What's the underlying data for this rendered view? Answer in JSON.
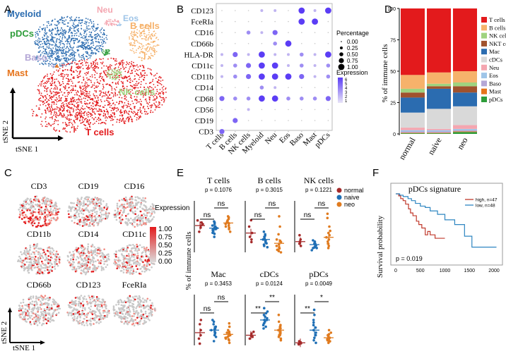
{
  "panel_labels": {
    "A": "A",
    "B": "B",
    "C": "C",
    "D": "D",
    "E": "E",
    "F": "F"
  },
  "colors": {
    "tcells": "#e31a1c",
    "bcells": "#f6b26b",
    "nkcells": "#9fd37f",
    "nktcells": "#a0522d",
    "myeloid": "#2b6cb0",
    "neu": "#f4a6b0",
    "eos": "#9fc5e8",
    "baso": "#b4a7d6",
    "mast": "#e6741c",
    "pdcs": "#2e9d3a",
    "cdcs": "#d9d9d9",
    "normal": "#a52a2a",
    "naive": "#1f6fb5",
    "neo": "#e07b1f"
  },
  "panel_a": {
    "axis_x": "tSNE 1",
    "axis_y": "tSNE 2",
    "clusters": {
      "myeloid": "Myeloid",
      "neu": "Neu",
      "eos": "Eos",
      "bcells": "B cells",
      "pdcs": "pDCs",
      "baso": "Baso",
      "mast": "Mast",
      "nkcells": "NK cells",
      "tcells": "T cells"
    }
  },
  "chart_data": [
    {
      "id": "B",
      "type": "dot",
      "rows": [
        "CD123",
        "FceRIa",
        "CD16",
        "CD66b",
        "HLA-DR",
        "CD11c",
        "CD11b",
        "CD14",
        "CD68",
        "CD56",
        "CD19",
        "CD3"
      ],
      "columns": [
        "T cells",
        "B cells",
        "NK cells",
        "Myeloid",
        "Neu",
        "Eos",
        "Baso",
        "Mast",
        "pDCs"
      ],
      "size_values": [
        [
          0,
          0,
          0,
          0.25,
          0.25,
          0,
          1,
          0.25,
          1
        ],
        [
          0,
          0,
          0,
          0,
          0,
          0,
          1,
          1,
          0
        ],
        [
          0,
          0,
          0.5,
          0.25,
          0.75,
          0,
          0,
          0,
          0
        ],
        [
          0,
          0,
          0,
          0,
          0.5,
          1,
          0,
          0,
          0
        ],
        [
          0.25,
          0.75,
          0.25,
          1,
          0.25,
          0.25,
          0.5,
          0.25,
          1
        ],
        [
          0.25,
          0.5,
          0.75,
          1,
          1,
          0.25,
          0.5,
          0.25,
          0.5
        ],
        [
          0.25,
          0.5,
          0.75,
          1,
          1,
          1,
          0.75,
          0.25,
          0.5
        ],
        [
          0,
          0,
          0,
          0.5,
          0.25,
          0,
          0,
          0,
          0
        ],
        [
          0.75,
          0.5,
          0.5,
          1,
          1,
          0.5,
          0.5,
          0.5,
          0.75
        ],
        [
          0,
          0,
          0.25,
          0,
          0,
          0,
          0,
          0,
          0
        ],
        [
          0,
          0.75,
          0,
          0,
          0,
          0,
          0,
          0,
          0
        ],
        [
          0.75,
          0,
          0,
          0,
          0,
          0,
          0,
          0,
          0
        ]
      ],
      "legend_size_title": "Percentage",
      "legend_sizes": [
        "0.00",
        "0.25",
        "0.50",
        "0.75",
        "1.00"
      ],
      "legend_color_title": "Expression",
      "legend_color_ticks": [
        "6",
        "5",
        "4",
        "3",
        "2",
        "1"
      ]
    },
    {
      "id": "D",
      "type": "stacked_bar",
      "categories": [
        "normal",
        "naive",
        "neo"
      ],
      "ylabel": "% of immune cells",
      "ylim": [
        0,
        100
      ],
      "yticks": [
        "0",
        "25",
        "50",
        "75",
        "100"
      ],
      "series": [
        {
          "name": "T cells",
          "color_key": "tcells",
          "values": [
            53,
            51,
            50
          ]
        },
        {
          "name": "B cells",
          "color_key": "bcells",
          "values": [
            11,
            9,
            9
          ]
        },
        {
          "name": "NK cells",
          "color_key": "nkcells",
          "values": [
            3,
            2,
            3
          ]
        },
        {
          "name": "NKT cells",
          "color_key": "nktcells",
          "values": [
            4,
            2,
            5
          ]
        },
        {
          "name": "Mac",
          "color_key": "myeloid",
          "values": [
            12,
            16,
            11
          ]
        },
        {
          "name": "cDCs",
          "color_key": "cdcs",
          "values": [
            12,
            16,
            15
          ]
        },
        {
          "name": "Neu",
          "color_key": "neu",
          "values": [
            2,
            1,
            3
          ]
        },
        {
          "name": "Eos",
          "color_key": "eos",
          "values": [
            1,
            1,
            1
          ]
        },
        {
          "name": "Baso",
          "color_key": "baso",
          "values": [
            1,
            1,
            1
          ]
        },
        {
          "name": "Mast",
          "color_key": "mast",
          "values": [
            0.5,
            0.5,
            0.5
          ]
        },
        {
          "name": "pDCs",
          "color_key": "pdcs",
          "values": [
            0.5,
            0.5,
            1.5
          ]
        }
      ]
    },
    {
      "id": "E",
      "type": "dot_strip",
      "ylabel": "% of immune cells",
      "groups": [
        "normal",
        "naive",
        "neo"
      ],
      "legend": [
        "normal",
        "naive",
        "neo"
      ],
      "subplots": [
        {
          "title": "T cells",
          "p": "p = 0.1076",
          "ylim": [
            0,
            100
          ],
          "means": [
            52,
            47,
            57
          ],
          "points": [
            [
              40,
              48,
              55,
              58,
              62,
              52
            ],
            [
              30,
              38,
              42,
              45,
              48,
              52,
              55,
              58,
              50,
              44,
              36,
              60,
              47
            ],
            [
              40,
              45,
              50,
              55,
              58,
              62,
              65,
              70,
              52,
              48,
              60,
              57,
              56,
              68
            ]
          ],
          "sig": [
            {
              "a": 0,
              "b": 1,
              "label": "ns"
            },
            {
              "a": 1,
              "b": 2,
              "label": "ns"
            }
          ]
        },
        {
          "title": "B cells",
          "p": "p = 0.3015",
          "ylim": [
            0,
            40
          ],
          "means": [
            15,
            10,
            7
          ],
          "points": [
            [
              8,
              12,
              15,
              20,
              25,
              10
            ],
            [
              4,
              6,
              8,
              10,
              12,
              14,
              16,
              9,
              7,
              11,
              13,
              5,
              10
            ],
            [
              0,
              1,
              2,
              3,
              5,
              8,
              10,
              14,
              20,
              28,
              4,
              2,
              6,
              9
            ]
          ],
          "sig": [
            {
              "a": 0,
              "b": 1,
              "label": "ns"
            },
            {
              "a": 1,
              "b": 2,
              "label": "ns"
            }
          ]
        },
        {
          "title": "NK cells",
          "p": "p = 0.1221",
          "ylim": [
            0,
            12
          ],
          "means": [
            2.5,
            1.8,
            3.5
          ],
          "points": [
            [
              1.5,
              2,
              2.5,
              3,
              4,
              2.2
            ],
            [
              0.5,
              1,
              1.5,
              2,
              2.5,
              1.2,
              1.8,
              2.2,
              1.6,
              2.8,
              1.4,
              2,
              1
            ],
            [
              1,
              2,
              3,
              4,
              5,
              6,
              8,
              9,
              2.5,
              3.5,
              1.5,
              4.5,
              2,
              3
            ]
          ],
          "sig": [
            {
              "a": 0,
              "b": 1,
              "label": "ns"
            },
            {
              "a": 1,
              "b": 2,
              "label": "ns"
            }
          ]
        },
        {
          "title": "Mac",
          "p": "p = 0.3453",
          "ylim": [
            0,
            60
          ],
          "means": [
            15,
            18,
            13
          ],
          "points": [
            [
              2,
              8,
              12,
              18,
              25,
              30
            ],
            [
              5,
              10,
              12,
              15,
              18,
              20,
              22,
              25,
              28,
              30,
              14,
              16,
              19
            ],
            [
              3,
              6,
              8,
              10,
              12,
              15,
              18,
              22,
              26,
              9,
              11,
              14,
              7,
              16
            ]
          ],
          "sig": [
            {
              "a": 0,
              "b": 1,
              "label": "ns"
            },
            {
              "a": 1,
              "b": 2,
              "label": "ns"
            }
          ]
        },
        {
          "title": "cDCs",
          "p": "p = 0.0124",
          "ylim": [
            0,
            30
          ],
          "means": [
            6,
            15,
            9
          ],
          "points": [
            [
              4,
              5,
              6,
              7,
              8,
              5.5
            ],
            [
              10,
              12,
              14,
              15,
              16,
              18,
              20,
              22,
              13,
              17,
              11,
              15,
              19
            ],
            [
              3,
              5,
              6,
              8,
              9,
              10,
              12,
              14,
              18,
              7,
              6,
              11,
              9,
              4
            ]
          ],
          "sig": [
            {
              "a": 0,
              "b": 1,
              "label": "**"
            },
            {
              "a": 1,
              "b": 2,
              "label": "**"
            }
          ]
        },
        {
          "title": "pDCs",
          "p": "p = 0.0049",
          "ylim": [
            0,
            1.0
          ],
          "means": [
            0.05,
            0.3,
            0.15
          ],
          "points": [
            [
              0.02,
              0.04,
              0.05,
              0.06,
              0.08,
              0.03
            ],
            [
              0.05,
              0.1,
              0.15,
              0.2,
              0.3,
              0.4,
              0.5,
              0.6,
              0.7,
              0.25,
              0.35,
              0.45,
              0.2
            ],
            [
              0.05,
              0.08,
              0.1,
              0.12,
              0.15,
              0.18,
              0.2,
              0.25,
              0.3,
              0.12,
              0.16,
              0.22,
              0.09,
              0.14
            ]
          ],
          "sig": [
            {
              "a": 0,
              "b": 1,
              "label": "**"
            },
            {
              "a": 1,
              "b": 2,
              "label": "*"
            }
          ]
        }
      ]
    },
    {
      "id": "F",
      "type": "survival",
      "title": "pDCs signature",
      "ylabel": "Survival probability",
      "xticks": [
        "0",
        "500",
        "1000",
        "1500",
        "2000"
      ],
      "xlim": [
        0,
        2100
      ],
      "p": "p = 0.019",
      "series": [
        {
          "name": "high, n=47",
          "color": "#c0392b",
          "times": [
            0,
            60,
            100,
            150,
            200,
            260,
            300,
            350,
            420,
            470,
            530,
            600,
            650,
            700,
            800,
            1000
          ],
          "surv": [
            1,
            0.97,
            0.93,
            0.9,
            0.85,
            0.78,
            0.72,
            0.68,
            0.6,
            0.55,
            0.5,
            0.4,
            0.45,
            0.4,
            0.35,
            0.35
          ]
        },
        {
          "name": "low, n=48",
          "color": "#2e86c1",
          "times": [
            0,
            80,
            150,
            250,
            320,
            400,
            500,
            600,
            700,
            850,
            1000,
            1200,
            1400,
            1550,
            2050
          ],
          "surv": [
            1,
            0.98,
            0.96,
            0.93,
            0.9,
            0.86,
            0.82,
            0.8,
            0.75,
            0.7,
            0.62,
            0.55,
            0.38,
            0.22,
            0.22
          ]
        }
      ]
    }
  ],
  "panel_c": {
    "markers": [
      "CD3",
      "CD19",
      "CD16",
      "CD11b",
      "CD14",
      "CD11c",
      "CD66b",
      "CD123",
      "FceRIa"
    ],
    "legend_title": "Expression",
    "legend_ticks": [
      "1.00",
      "0.75",
      "0.50",
      "0.25",
      "0.00"
    ],
    "axis_x": "tSNE 1",
    "axis_y": "tSNE 2"
  }
}
